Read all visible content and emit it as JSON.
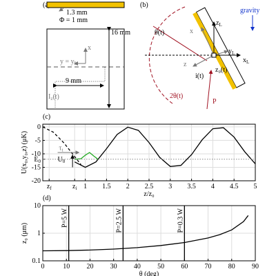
{
  "panel_a": {
    "label": "(a)",
    "thickness": "1.3 mm",
    "diameter": "Φ = 1 mm",
    "height": "16 mm",
    "width": "9 mm",
    "y_eq": "y = y",
    "y_eq_sub": "L",
    "x": "x",
    "current": "I",
    "current_sub": "z",
    "current_arg": "(t)"
  },
  "panel_b": {
    "label": "(b)",
    "gravity": "gravity",
    "theta": "θ(t)",
    "x": "x",
    "z_l": "z",
    "z_l_sub": "L",
    "y_l": "y",
    "y_l_sub": "L",
    "x_l": "x",
    "x_l_sub": "L",
    "z": "z",
    "i": "i(t)",
    "z0": "z₀(t)",
    "two_theta": "2θ(t)",
    "p": "P"
  },
  "chart_data": [
    {
      "type": "line",
      "label": "(c)",
      "ylabel": "U(x₀,y₀,z) (μK)",
      "xlabel": "z/z₀",
      "xlim": [
        0,
        5
      ],
      "ylim": [
        -20,
        1
      ],
      "xticks": [
        {
          "value": 0.15,
          "label": "z",
          "sub": "f"
        },
        {
          "value": 0.75,
          "label": "z",
          "sub": "i"
        },
        1,
        1.5,
        2,
        2.5,
        3,
        3.5,
        4,
        4.5,
        5
      ],
      "yticks": [
        -20,
        -15,
        {
          "value": -12,
          "label": "E",
          "sub": "0"
        },
        -10,
        -5,
        0
      ],
      "grid": true,
      "annotations": [
        "τ",
        "t",
        "U",
        "0"
      ],
      "series": [
        {
          "style": "dashed",
          "color": "#000000",
          "x": [
            0,
            0.25,
            0.5,
            0.75,
            0.9
          ],
          "values": [
            0,
            -2,
            -6,
            -11,
            -14
          ]
        },
        {
          "style": "solid",
          "color": "#000000",
          "x": [
            0.75,
            1,
            1.25,
            1.5,
            1.75,
            2,
            2.25,
            2.5,
            2.75,
            3,
            3.25,
            3.5,
            3.75,
            4,
            4.25,
            4.5,
            4.75,
            5
          ],
          "values": [
            -13,
            -15,
            -13,
            -8.1,
            -2.8,
            -0.1,
            -1.3,
            -5.8,
            -11.3,
            -14.7,
            -14.3,
            -10.3,
            -4.8,
            -0.7,
            -0.3,
            -3.8,
            -9.2,
            -13.7
          ]
        },
        {
          "style": "solid",
          "color": "#22aa22",
          "x": [
            0.75,
            0.9,
            1.0,
            1.1,
            1.2,
            1.3
          ],
          "values": [
            -12,
            -11.8,
            -10.5,
            -9.5,
            -10.8,
            -12
          ]
        },
        {
          "style": "dotted",
          "color": "#888888",
          "x": [
            0,
            5
          ],
          "values": [
            -12,
            -12
          ]
        }
      ]
    },
    {
      "type": "line",
      "label": "(d)",
      "ylabel": "z₀ (μm)",
      "xlabel": "θ (deg)",
      "xlim": [
        0,
        90
      ],
      "ylim": [
        0.1,
        10
      ],
      "log_y": true,
      "xticks": [
        0,
        10,
        20,
        30,
        40,
        50,
        60,
        70,
        80,
        90
      ],
      "yticks": [
        0.1,
        1,
        10
      ],
      "grid": true,
      "vlines": [
        {
          "value": 11,
          "label": "P=5 W"
        },
        {
          "value": 34,
          "label": "P=2.5 W"
        },
        {
          "value": 60,
          "label": "P=0.3 W"
        }
      ],
      "series": [
        {
          "style": "solid",
          "color": "#000000",
          "x": [
            0,
            10,
            20,
            30,
            40,
            50,
            60,
            70,
            75,
            80,
            85,
            87
          ],
          "values": [
            0.23,
            0.234,
            0.245,
            0.266,
            0.3,
            0.358,
            0.46,
            0.672,
            0.889,
            1.32,
            2.64,
            4.39
          ]
        }
      ]
    }
  ]
}
